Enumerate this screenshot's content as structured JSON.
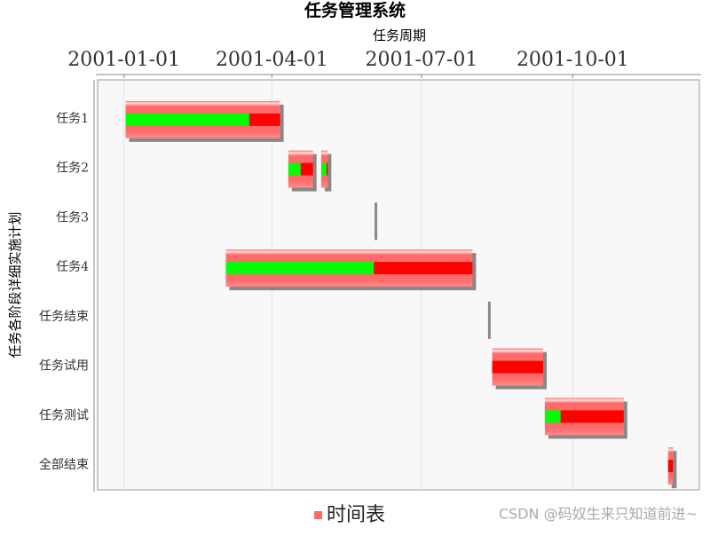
{
  "chart_data": {
    "type": "gantt",
    "title": "任务管理系统",
    "x_label": "任务周期",
    "y_label": "任务各阶段详细实施计划",
    "categories": [
      "任务1",
      "任务2",
      "任务3",
      "任务4",
      "任务结束",
      "任务试用",
      "任务测试",
      "全部结束"
    ],
    "xlim": [
      "2000-12-16",
      "2001-12-17"
    ],
    "xticks": [
      "2001-01-01",
      "2001-04-01",
      "2001-07-01",
      "2001-10-01"
    ],
    "grid": true,
    "legend": "bottom",
    "series": [
      {
        "name": "时间表",
        "color": "#ff6b6b",
        "done_color": "#00ff00",
        "todo_color": "#ff0000",
        "start": [
          "2001-01-02",
          null,
          "2001-06-03",
          "2001-03-04",
          "2001-08-11",
          "2001-08-13",
          "2001-09-14",
          "2001-11-28"
        ],
        "end": [
          "2001-04-06",
          null,
          "2001-06-03",
          "2001-08-01",
          "2001-08-11",
          "2001-09-13",
          "2001-11-01",
          "2001-12-01"
        ],
        "percent": [
          80,
          null,
          null,
          60,
          null,
          0,
          20,
          0
        ],
        "subtasks": [
          null,
          [
            {
              "start": "2001-04-11",
              "end": "2001-04-26",
              "percent": 50
            },
            {
              "start": "2001-05-01",
              "end": "2001-05-05",
              "percent": 80
            }
          ],
          null,
          null,
          null,
          null,
          null,
          null
        ]
      }
    ],
    "watermark": "CSDN @码奴生来只知道前进~"
  }
}
